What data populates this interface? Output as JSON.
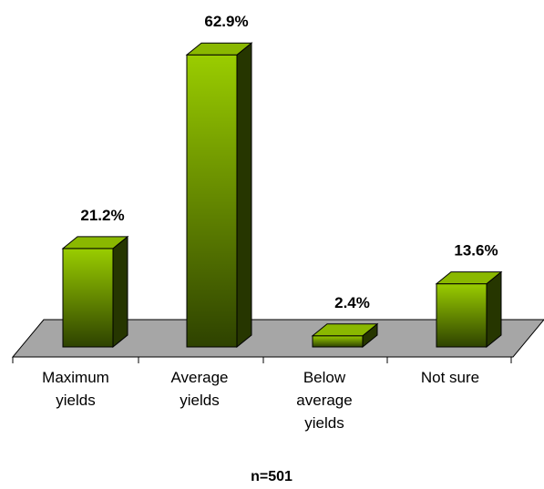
{
  "chart_data": {
    "type": "bar",
    "categories": [
      [
        "Maximum",
        "yields"
      ],
      [
        "Average",
        "yields"
      ],
      [
        "Below",
        "average",
        "yields"
      ],
      [
        "Not sure"
      ]
    ],
    "values": [
      21.2,
      62.9,
      2.4,
      13.6
    ],
    "value_labels": [
      "21.2%",
      "62.9%",
      "2.4%",
      "13.6%"
    ],
    "value_unit": "%",
    "title": "",
    "xlabel": "",
    "ylabel": "",
    "ylim": [
      0,
      70
    ],
    "grid": false,
    "legend": "none",
    "style": "3d-bars",
    "colors": {
      "bar_top": "#9acd00",
      "bar_bottom": "#2e4200",
      "bar_side": "#263600",
      "bar_cap": "#8ab800",
      "floor": "#a6a6a6",
      "outline": "#000000"
    },
    "footnote": "n=501"
  }
}
